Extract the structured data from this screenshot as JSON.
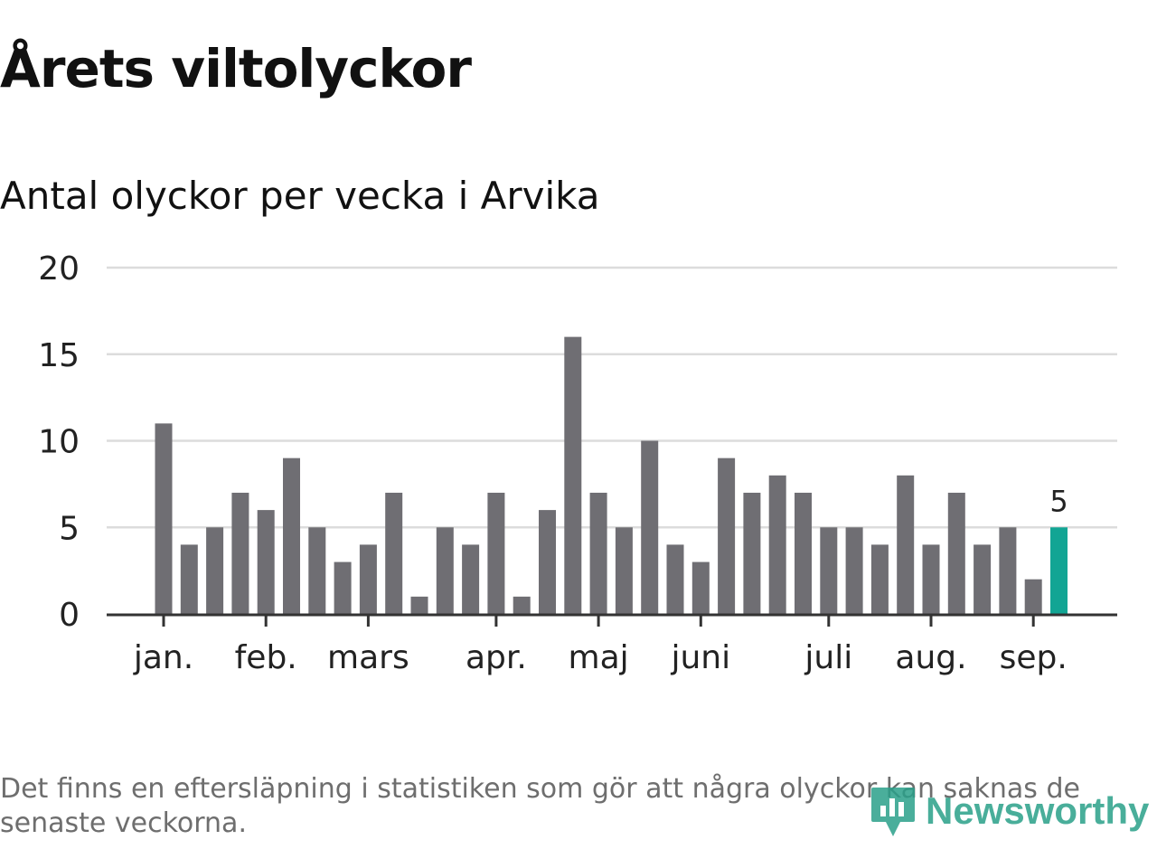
{
  "title": "Årets viltolyckor",
  "subtitle": "Antal olyckor per vecka i Arvika",
  "footnote": "Det finns en eftersläpning i statistiken som gör att några olyckor kan saknas de senaste veckorna.",
  "logo": {
    "text": "Newsworthy",
    "icon": "bar-chart-pin-icon"
  },
  "colors": {
    "bar": "#6f6e73",
    "highlight": "#12a594",
    "grid": "#dcdcdc",
    "axis": "#333333",
    "text": "#222222",
    "logo": "#2aa089"
  },
  "chart_data": {
    "type": "bar",
    "title": "Antal olyckor per vecka i Arvika",
    "xlabel": "",
    "ylabel": "",
    "ylim": [
      0,
      20
    ],
    "yticks": [
      "0",
      "5",
      "10",
      "15",
      "20"
    ],
    "grid": true,
    "month_labels": [
      {
        "label": "jan.",
        "week": 1
      },
      {
        "label": "feb.",
        "week": 5
      },
      {
        "label": "mars",
        "week": 9
      },
      {
        "label": "apr.",
        "week": 14
      },
      {
        "label": "maj",
        "week": 18
      },
      {
        "label": "juni",
        "week": 22
      },
      {
        "label": "juli",
        "week": 27
      },
      {
        "label": "aug.",
        "week": 31
      },
      {
        "label": "sep.",
        "week": 35
      }
    ],
    "weeks": [
      1,
      2,
      3,
      4,
      5,
      6,
      7,
      8,
      9,
      10,
      11,
      12,
      13,
      14,
      15,
      16,
      17,
      18,
      19,
      20,
      21,
      22,
      23,
      24,
      25,
      26,
      27,
      28,
      29,
      30,
      31,
      32,
      33,
      34,
      35,
      36
    ],
    "values": [
      11,
      4,
      5,
      7,
      6,
      9,
      5,
      3,
      4,
      7,
      1,
      5,
      4,
      7,
      1,
      6,
      16,
      7,
      5,
      10,
      4,
      3,
      9,
      7,
      8,
      7,
      5,
      5,
      4,
      8,
      4,
      7,
      4,
      5,
      2,
      5
    ],
    "highlight": {
      "week": 36,
      "value": 5,
      "label": "5"
    }
  }
}
